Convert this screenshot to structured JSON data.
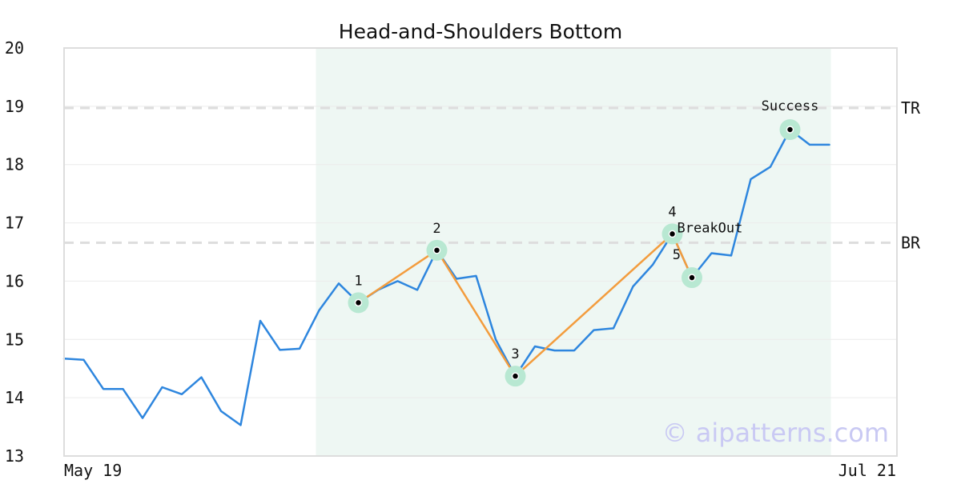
{
  "chart_data": {
    "type": "line",
    "title": "Head-and-Shoulders Bottom",
    "watermark": "© aipatterns.com",
    "x_labels": {
      "start": "May 19",
      "end": "Jul 21"
    },
    "ylim": [
      13,
      20
    ],
    "yticks": [
      13,
      14,
      15,
      16,
      17,
      18,
      19,
      20
    ],
    "grid": true,
    "series": [
      {
        "color": "#2e86de",
        "values": [
          14.67,
          14.65,
          14.15,
          14.15,
          13.65,
          14.18,
          14.06,
          14.35,
          13.77,
          13.53,
          15.32,
          14.82,
          14.84,
          15.5,
          15.96,
          15.63,
          15.85,
          16.0,
          15.85,
          16.53,
          16.04,
          16.09,
          15.0,
          14.37,
          14.88,
          14.81,
          14.81,
          15.16,
          15.19,
          15.91,
          16.28,
          16.81,
          16.06,
          16.48,
          16.44,
          17.75,
          17.96,
          18.6,
          18.34,
          18.34
        ]
      }
    ],
    "pattern": {
      "color": "#f39c3d",
      "marker_color": "#b8e8d2",
      "points": [
        {
          "label": "1",
          "x_index": 15,
          "y": 15.63
        },
        {
          "label": "2",
          "x_index": 19,
          "y": 16.53
        },
        {
          "label": "3",
          "x_index": 23,
          "y": 14.37
        },
        {
          "label": "4",
          "x_index": 31,
          "y": 16.81
        },
        {
          "label": "5",
          "x_index": 32,
          "y": 16.06
        }
      ],
      "breakout": {
        "label": "BreakOut",
        "x_index": 31,
        "y": 16.81
      },
      "success": {
        "label": "Success",
        "x_index": 37,
        "y": 18.6
      }
    },
    "highlight_region": {
      "x_index_start": 13,
      "x_index_end": 39,
      "color": "#eef7f3"
    },
    "levels": [
      {
        "label": "TR",
        "y": 18.97
      },
      {
        "label": "BR",
        "y": 16.66
      }
    ]
  }
}
